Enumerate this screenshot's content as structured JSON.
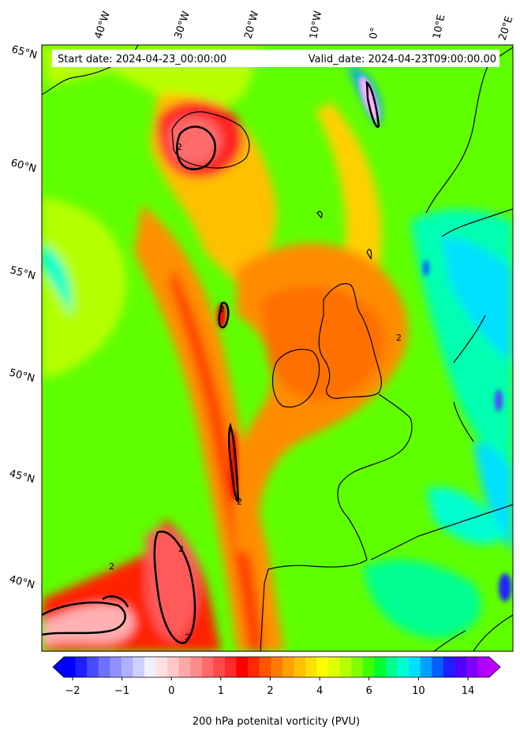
{
  "header": {
    "start_date": "Start date: 2024-04-23_00:00:00",
    "valid_date": "Valid_date: 2024-04-23T09:00:00.00"
  },
  "map": {
    "projection": "lambert-conformal",
    "lon_labels": [
      "40°W",
      "30°W",
      "20°W",
      "10°W",
      "0°",
      "10°E",
      "20°E"
    ],
    "lat_labels": [
      "65°N",
      "60°N",
      "55°N",
      "50°N",
      "45°N",
      "40°N"
    ],
    "contour_label": "2",
    "field": "200 hPa potential vorticity",
    "layers": [
      "filled-pv-contours",
      "pv-2-contour-lines",
      "coastlines"
    ]
  },
  "colorbar": {
    "title": "200 hPa potenital vorticity (PVU)",
    "tick_labels": [
      "−2",
      "−1",
      "0",
      "1",
      "2",
      "4",
      "6",
      "10",
      "14"
    ],
    "extend": "both",
    "colors": [
      "#0000ff",
      "#2020ff",
      "#4a4aff",
      "#7070ff",
      "#9090ff",
      "#b0b0ff",
      "#d0d0ff",
      "#f0f0ff",
      "#ffe0e0",
      "#ffc8c8",
      "#ffa8a8",
      "#ff8c8c",
      "#ff6a6a",
      "#ff4a4a",
      "#ff2a2a",
      "#ff0000",
      "#ff2a00",
      "#ff5500",
      "#ff7a00",
      "#ffa000",
      "#ffc000",
      "#ffe000",
      "#ffff00",
      "#e0ff00",
      "#b8ff00",
      "#80ff00",
      "#40ff00",
      "#00ff30",
      "#00ff90",
      "#00ffd0",
      "#00e0ff",
      "#00a0ff",
      "#0060ff",
      "#2020ff",
      "#5000ff",
      "#8000ff",
      "#b000ff"
    ],
    "left_arrow_color": "#0000ff",
    "right_arrow_color": "#c000ff"
  }
}
